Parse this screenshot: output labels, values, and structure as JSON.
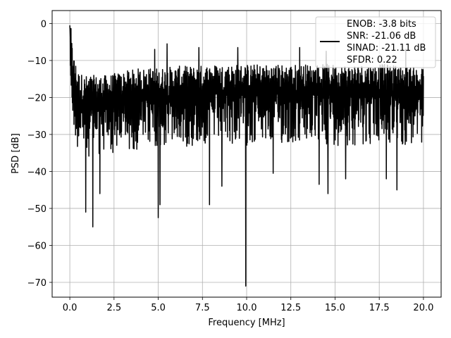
{
  "chart_data": {
    "type": "line",
    "title": "",
    "xlabel": "Frequency [MHz]",
    "ylabel": "PSD [dB]",
    "xlim": [
      -1.0,
      21.0
    ],
    "ylim": [
      -74.0,
      3.5
    ],
    "x_ticks": [
      0.0,
      2.5,
      5.0,
      7.5,
      10.0,
      12.5,
      15.0,
      17.5,
      20.0
    ],
    "x_tick_labels": [
      "0.0",
      "2.5",
      "5.0",
      "7.5",
      "10.0",
      "12.5",
      "15.0",
      "17.5",
      "20.0"
    ],
    "y_ticks": [
      0,
      -10,
      -20,
      -30,
      -40,
      -50,
      -60,
      -70
    ],
    "y_tick_labels": [
      "0",
      "−10",
      "−20",
      "−30",
      "−40",
      "−50",
      "−60",
      "−70"
    ],
    "grid": true,
    "legend_position": "top-right",
    "legend_lines": [
      "ENOB: -3.8 bits",
      "SNR: -21.06 dB",
      "SINAD: -21.11 dB",
      "SFDR: 0.22"
    ],
    "series": [
      {
        "color": "#000000",
        "trend": {
          "x": [
            0.0,
            0.05,
            0.1,
            0.2,
            0.3,
            0.5,
            0.8,
            1.2,
            2.0,
            3.0,
            4.0,
            5.0,
            6.0,
            7.0,
            8.0,
            9.0,
            10.0,
            11.0,
            12.0,
            13.0,
            14.0,
            15.0,
            16.0,
            17.0,
            18.0,
            19.0,
            20.0
          ],
          "y": [
            0.0,
            -8,
            -12,
            -16,
            -18,
            -21,
            -22,
            -22,
            -22,
            -21,
            -20,
            -20,
            -19.5,
            -19.5,
            -19,
            -19,
            -19,
            -19,
            -19,
            -19,
            -19,
            -19,
            -19,
            -19,
            -19,
            -19.5,
            -20
          ]
        },
        "spread_above_dB": 8,
        "spread_below_dB": 14,
        "peaks": [
          [
            0.0,
            -0.5
          ],
          [
            4.8,
            -7
          ],
          [
            5.5,
            -5.5
          ],
          [
            7.3,
            -6.5
          ],
          [
            9.5,
            -6.5
          ],
          [
            13.0,
            -6.5
          ],
          [
            14.5,
            -7.5
          ],
          [
            19.0,
            -7.0
          ]
        ],
        "dips": [
          [
            0.9,
            -51
          ],
          [
            1.3,
            -55
          ],
          [
            1.7,
            -46
          ],
          [
            5.0,
            -52.5
          ],
          [
            5.1,
            -49
          ],
          [
            7.9,
            -49
          ],
          [
            8.6,
            -44
          ],
          [
            9.95,
            -71
          ],
          [
            11.5,
            -40.5
          ],
          [
            14.1,
            -43.5
          ],
          [
            14.6,
            -46
          ],
          [
            15.6,
            -42
          ],
          [
            17.9,
            -42
          ],
          [
            18.5,
            -45
          ]
        ]
      }
    ]
  }
}
